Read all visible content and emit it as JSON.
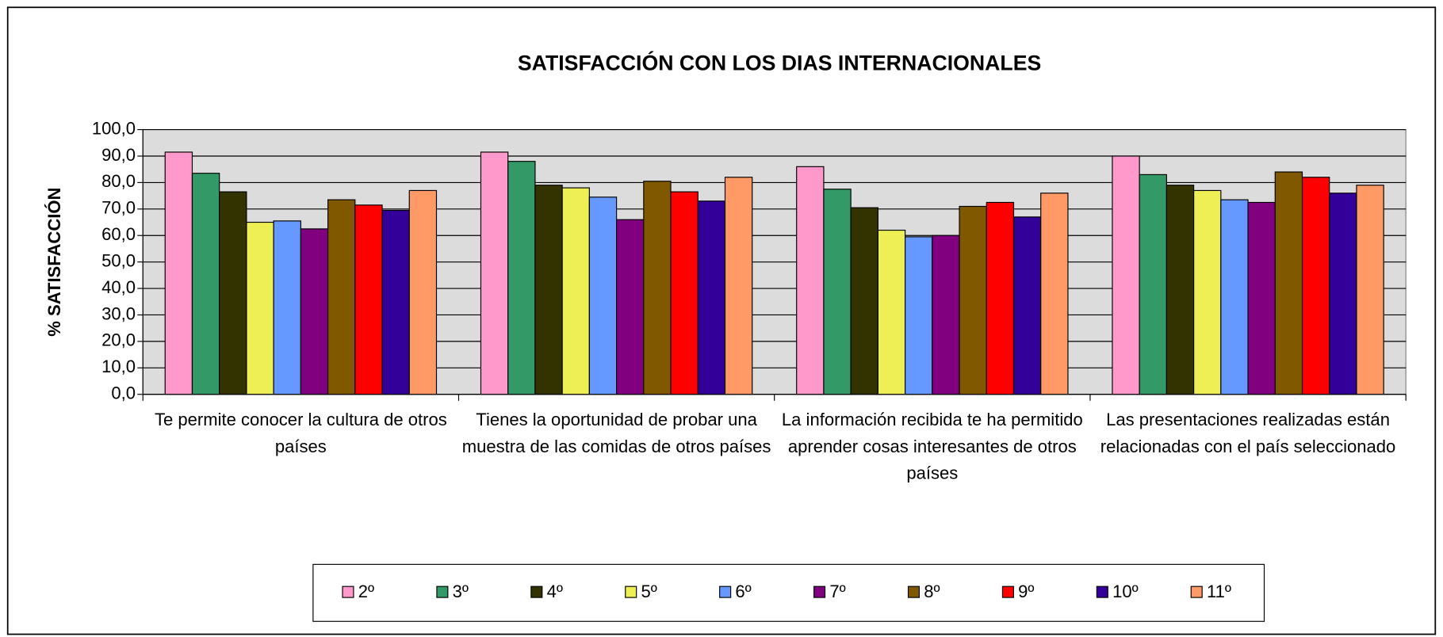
{
  "chart_data": {
    "type": "bar",
    "title": "SATISFACCIÓN CON LOS DIAS INTERNACIONALES",
    "y_label": "% SATISFACCIÓN",
    "categories": [
      "Te permite conocer la cultura de otros países",
      "Tienes la oportunidad de probar una muestra de las comidas de otros países",
      "La información recibida te ha permitido aprender cosas interesantes de otros países",
      "Las presentaciones realizadas están relacionadas con el país seleccionado"
    ],
    "series": [
      {
        "name": "2º",
        "color": "#ff99cc",
        "values": [
          91.5,
          91.5,
          86,
          90
        ]
      },
      {
        "name": "3º",
        "color": "#339966",
        "values": [
          83.5,
          88,
          77.5,
          83
        ]
      },
      {
        "name": "4º",
        "color": "#333300",
        "values": [
          76.5,
          79,
          70.5,
          79
        ]
      },
      {
        "name": "5º",
        "color": "#eeee55",
        "values": [
          65,
          78,
          62,
          77
        ]
      },
      {
        "name": "6º",
        "color": "#6699ff",
        "values": [
          65.5,
          74.5,
          59.5,
          73.5
        ]
      },
      {
        "name": "7º",
        "color": "#800080",
        "values": [
          62.5,
          66,
          60,
          72.5
        ]
      },
      {
        "name": "8º",
        "color": "#805800",
        "values": [
          73.5,
          80.5,
          71,
          84
        ]
      },
      {
        "name": "9º",
        "color": "#ff0000",
        "values": [
          71.5,
          76.5,
          72.5,
          82
        ]
      },
      {
        "name": "10º",
        "color": "#330099",
        "values": [
          69.5,
          73,
          67,
          76
        ]
      },
      {
        "name": "11º",
        "color": "#ff9966",
        "values": [
          77,
          82,
          76,
          79
        ]
      }
    ],
    "ylim": [
      0,
      100
    ],
    "yticks": [
      {
        "value": 0,
        "label": "0,0"
      },
      {
        "value": 10,
        "label": "10,0"
      },
      {
        "value": 20,
        "label": "20,0"
      },
      {
        "value": 30,
        "label": "30,0"
      },
      {
        "value": 40,
        "label": "40,0"
      },
      {
        "value": 50,
        "label": "50,0"
      },
      {
        "value": 60,
        "label": "60,0"
      },
      {
        "value": 70,
        "label": "70,0"
      },
      {
        "value": 80,
        "label": "80,0"
      },
      {
        "value": 90,
        "label": "90,0"
      },
      {
        "value": 100,
        "label": "100,0"
      }
    ],
    "grid": true,
    "legend": "bottom"
  }
}
